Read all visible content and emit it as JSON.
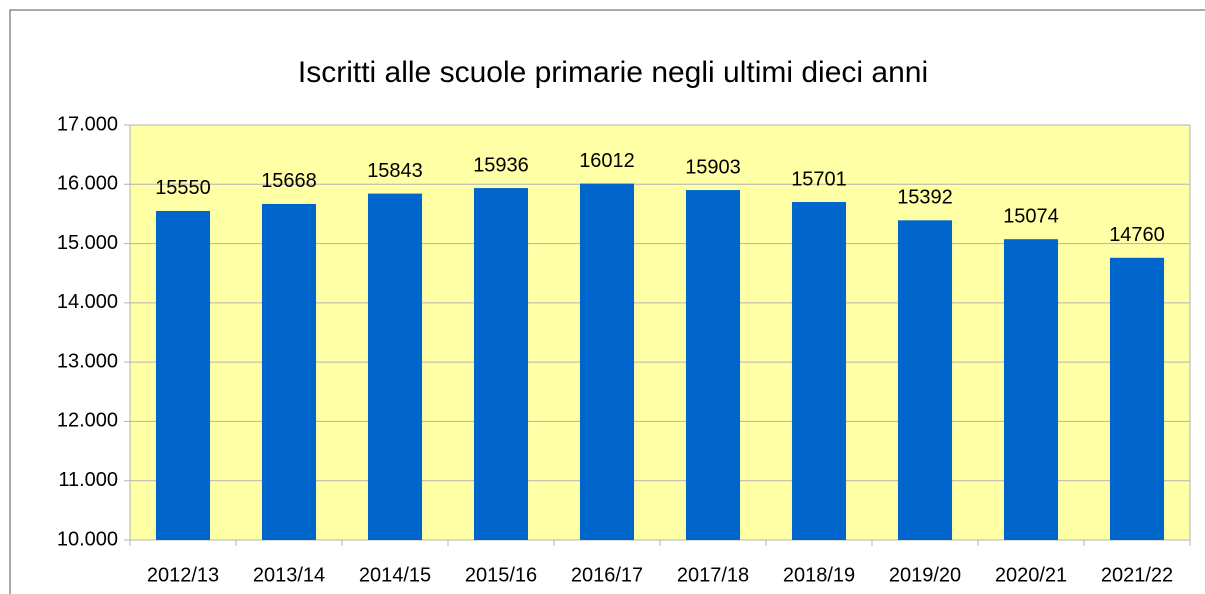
{
  "chart_data": {
    "type": "bar",
    "title": "Iscritti alle scuole primarie negli ultimi dieci anni",
    "categories": [
      "2012/13",
      "2013/14",
      "2014/15",
      "2015/16",
      "2016/17",
      "2017/18",
      "2018/19",
      "2019/20",
      "2020/21",
      "2021/22"
    ],
    "values": [
      15550,
      15668,
      15843,
      15936,
      16012,
      15903,
      15701,
      15392,
      15074,
      14760
    ],
    "color": "#0066cc",
    "ylim": [
      10000,
      17000
    ],
    "yticks": [
      {
        "value": 10000,
        "label": "10.000"
      },
      {
        "value": 11000,
        "label": "11.000"
      },
      {
        "value": 12000,
        "label": "12.000"
      },
      {
        "value": 13000,
        "label": "13.000"
      },
      {
        "value": 14000,
        "label": "14.000"
      },
      {
        "value": 15000,
        "label": "15.000"
      },
      {
        "value": 16000,
        "label": "16.000"
      },
      {
        "value": 17000,
        "label": "17.000"
      }
    ],
    "grid": true
  }
}
